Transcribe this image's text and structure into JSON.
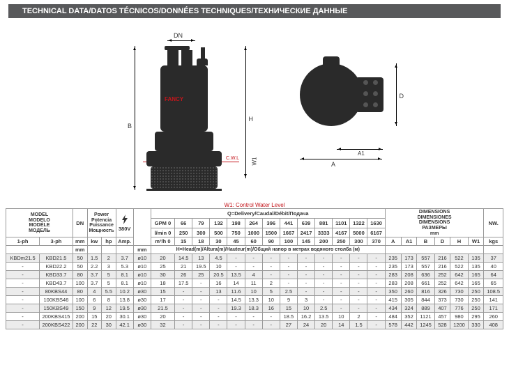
{
  "header": {
    "title": "TECHNICAL DATA/DATOS TÉCNICOS/DONNÉES TECHNIQUES/ТЕХНИЧЕСКИЕ ДАННЫЕ"
  },
  "diagram": {
    "dn": "DN",
    "b": "B",
    "h": "H",
    "w1": "W1",
    "cwl": "C.W.L",
    "brand": "FANCY",
    "footnote": "W1: Control Water Level",
    "a": "A",
    "a1": "A1",
    "d": "D"
  },
  "table": {
    "model_labels": [
      "MODEL",
      "MODELO",
      "MODÈLE",
      "МОДЕЛЬ"
    ],
    "ph1": "1-ph",
    "ph3": "3-ph",
    "dn": "DN",
    "power_labels": [
      "Power",
      "Potencia",
      "Puissance",
      "Мощность"
    ],
    "volt": "380V",
    "q_header": "Q=Delivery/Caudal/Débit/Подача",
    "dim_labels": [
      "DIMENSIONS",
      "DIMENSIONES",
      "DIMENSIONS",
      "РАЗМЕРЫ",
      "mm"
    ],
    "nw": "NW.",
    "units_row1": {
      "mm": "mm",
      "kw": "kw",
      "hp": "hp",
      "amp": "Amp.",
      "mm2": "mm"
    },
    "gpm_label": "GPM 0",
    "lmin_label": "l/min 0",
    "m3h_label": "m³/h 0",
    "head_label": "H=Head(m)/Altura(m)/Hauteur(m)/Общий напор в метрах водяного столба (м)",
    "gpm": [
      "66",
      "79",
      "132",
      "198",
      "264",
      "396",
      "441",
      "639",
      "881",
      "1101",
      "1322",
      "1630"
    ],
    "lmin": [
      "250",
      "300",
      "500",
      "750",
      "1000",
      "1500",
      "1667",
      "2417",
      "3333",
      "4167",
      "5000",
      "6167"
    ],
    "m3h": [
      "15",
      "18",
      "30",
      "45",
      "60",
      "90",
      "100",
      "145",
      "200",
      "250",
      "300",
      "370"
    ],
    "dim_cols": [
      "A",
      "A1",
      "B",
      "D",
      "H",
      "W1"
    ],
    "kgs": "kgs",
    "rows": [
      {
        "ph1": "KBDm21.5",
        "ph3": "KBD21.5",
        "dn": "50",
        "kw": "1.5",
        "hp": "2",
        "amp": "3.7",
        "mm": "ø10",
        "h0": "20",
        "v": [
          "14.5",
          "13",
          "4.5",
          "-",
          "-",
          "-",
          "-",
          "-",
          "-",
          "-",
          "-",
          "-"
        ],
        "d": [
          "235",
          "173",
          "557",
          "216",
          "522",
          "135"
        ],
        "nw": "37"
      },
      {
        "ph1": "-",
        "ph3": "KBD22.2",
        "dn": "50",
        "kw": "2.2",
        "hp": "3",
        "amp": "5.3",
        "mm": "ø10",
        "h0": "25",
        "v": [
          "21",
          "19.5",
          "10",
          "-",
          "-",
          "-",
          "-",
          "-",
          "-",
          "-",
          "-",
          "-"
        ],
        "d": [
          "235",
          "173",
          "557",
          "216",
          "522",
          "135"
        ],
        "nw": "40"
      },
      {
        "ph1": "-",
        "ph3": "KBD33.7",
        "dn": "80",
        "kw": "3.7",
        "hp": "5",
        "amp": "8.1",
        "mm": "ø10",
        "h0": "30",
        "v": [
          "26",
          "25",
          "20.5",
          "13.5",
          "4",
          "-",
          "-",
          "-",
          "-",
          "-",
          "-",
          "-"
        ],
        "d": [
          "283",
          "208",
          "636",
          "252",
          "642",
          "165"
        ],
        "nw": "64"
      },
      {
        "ph1": "-",
        "ph3": "KBD43.7",
        "dn": "100",
        "kw": "3.7",
        "hp": "5",
        "amp": "8.1",
        "mm": "ø10",
        "h0": "18",
        "v": [
          "17.5",
          "-",
          "16",
          "14",
          "11",
          "2",
          "-",
          "-",
          "-",
          "-",
          "-",
          "-"
        ],
        "d": [
          "283",
          "208",
          "661",
          "252",
          "642",
          "165"
        ],
        "nw": "65"
      },
      {
        "ph1": "-",
        "ph3": "80KBS44",
        "dn": "80",
        "kw": "4",
        "hp": "5.5",
        "amp": "10.2",
        "mm": "ø30",
        "h0": "15",
        "v": [
          "-",
          "-",
          "13",
          "11.6",
          "10",
          "5",
          "2.5",
          "-",
          "-",
          "-",
          "-",
          "-"
        ],
        "d": [
          "350",
          "260",
          "816",
          "326",
          "730",
          "250"
        ],
        "nw": "108.5"
      },
      {
        "ph1": "-",
        "ph3": "100KBS46",
        "dn": "100",
        "kw": "6",
        "hp": "8",
        "amp": "13.8",
        "mm": "ø30",
        "h0": "17",
        "v": [
          "-",
          "-",
          "-",
          "14.5",
          "13.3",
          "10",
          "9",
          "3",
          "-",
          "-",
          "-",
          "-"
        ],
        "d": [
          "415",
          "305",
          "844",
          "373",
          "730",
          "250"
        ],
        "nw": "141"
      },
      {
        "ph1": "-",
        "ph3": "150KBS49",
        "dn": "150",
        "kw": "9",
        "hp": "12",
        "amp": "19.5",
        "mm": "ø30",
        "h0": "21.5",
        "v": [
          "-",
          "-",
          "-",
          "19.3",
          "18.3",
          "16",
          "15",
          "10",
          "2.5",
          "-",
          "-",
          "-"
        ],
        "d": [
          "434",
          "324",
          "889",
          "407",
          "776",
          "250"
        ],
        "nw": "171"
      },
      {
        "ph1": "-",
        "ph3": "200KBS415",
        "dn": "200",
        "kw": "15",
        "hp": "20",
        "amp": "30.1",
        "mm": "ø30",
        "h0": "20",
        "v": [
          "-",
          "-",
          "-",
          "-",
          "-",
          "-",
          "18.5",
          "16.2",
          "13.5",
          "10",
          "2",
          "-"
        ],
        "d": [
          "484",
          "352",
          "1121",
          "457",
          "980",
          "295"
        ],
        "nw": "260"
      },
      {
        "ph1": "-",
        "ph3": "200KBS422",
        "dn": "200",
        "kw": "22",
        "hp": "30",
        "amp": "42.1",
        "mm": "ø30",
        "h0": "32",
        "v": [
          "-",
          "-",
          "-",
          "-",
          "-",
          "-",
          "27",
          "24",
          "20",
          "14",
          "1.5",
          "-"
        ],
        "d": [
          "578",
          "442",
          "1245",
          "528",
          "1200",
          "330"
        ],
        "nw": "408"
      }
    ]
  }
}
